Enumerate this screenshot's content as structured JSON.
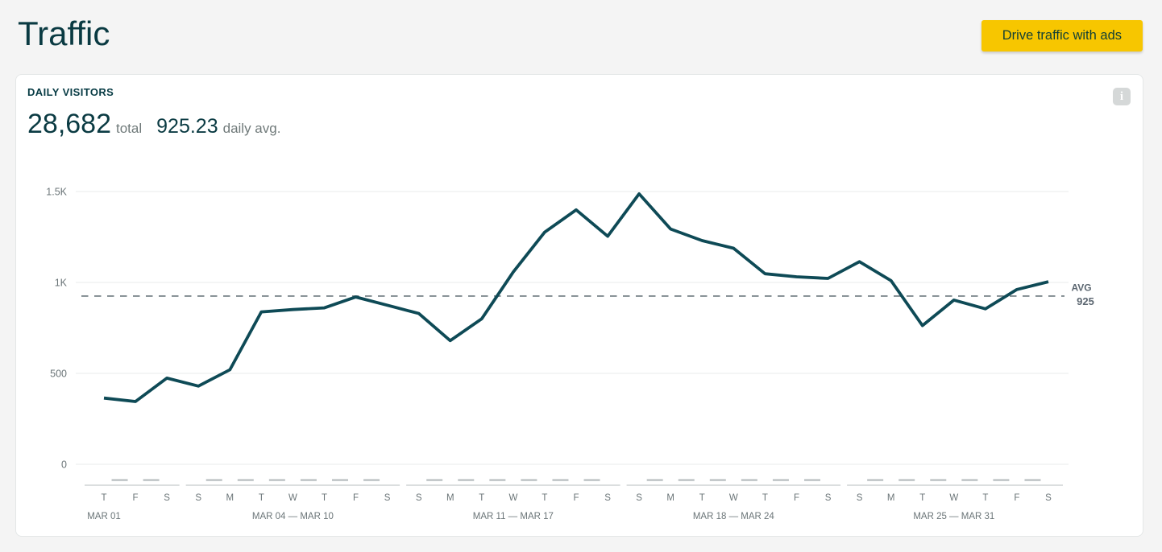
{
  "header": {
    "title": "Traffic",
    "cta_label": "Drive traffic with ads"
  },
  "card": {
    "section_label": "DAILY VISITORS",
    "stats": {
      "total": "28,682",
      "total_label": "total",
      "avg": "925.23",
      "avg_label": "daily avg."
    },
    "info_icon_glyph": "i"
  },
  "colors": {
    "line": "#0e4a56",
    "cta_yellow": "#f7c600",
    "dark_text": "#0b3b43",
    "muted_text": "#6b7578",
    "grid": "#e9ebeb",
    "avg_dash": "#7f898e",
    "avg_text": "#5b6670",
    "week_line": "#c5cacc",
    "week_tick": "#b6bcbe"
  },
  "chart_data": {
    "type": "line",
    "title": "DAILY VISITORS",
    "series_name": "daily visitors",
    "xlabel": "",
    "ylabel": "",
    "ylim": [
      0,
      1580
    ],
    "grid": true,
    "legend": false,
    "y_ticks": [
      {
        "label": "1.5K",
        "value": 1500
      },
      {
        "label": "1K",
        "value": 1000
      },
      {
        "label": "500",
        "value": 500
      },
      {
        "label": "0",
        "value": 0
      }
    ],
    "avg_line": {
      "label": "AVG",
      "display": "925",
      "value": 925,
      "style": "dashed"
    },
    "total": 28682,
    "daily_avg": 925.23,
    "weeks": [
      {
        "label": "MAR 01",
        "days": [
          "T",
          "F",
          "S"
        ],
        "values": [
          364,
          345,
          474
        ]
      },
      {
        "label": "MAR 04 — MAR 10",
        "days": [
          "S",
          "M",
          "T",
          "W",
          "T",
          "F",
          "S"
        ],
        "values": [
          430,
          520,
          838,
          851,
          860,
          920,
          875
        ]
      },
      {
        "label": "MAR 11 — MAR 17",
        "days": [
          "S",
          "M",
          "T",
          "W",
          "T",
          "F",
          "S"
        ],
        "values": [
          829,
          680,
          800,
          1057,
          1276,
          1399,
          1254
        ]
      },
      {
        "label": "MAR 18 — MAR 24",
        "days": [
          "S",
          "M",
          "T",
          "W",
          "T",
          "F",
          "S"
        ],
        "values": [
          1487,
          1294,
          1230,
          1188,
          1048,
          1031,
          1022
        ]
      },
      {
        "label": "MAR 25 — MAR 31",
        "days": [
          "S",
          "M",
          "T",
          "W",
          "T",
          "F",
          "S"
        ],
        "values": [
          1114,
          1010,
          763,
          903,
          855,
          961,
          1004
        ]
      }
    ]
  }
}
